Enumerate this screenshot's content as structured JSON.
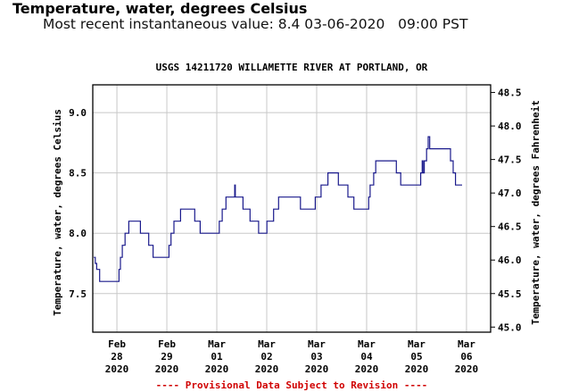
{
  "header": {
    "title": "Temperature, water, degrees Celsius",
    "subtitle": "Most recent instantaneous value: 8.4 03-06-2020   09:00 PST"
  },
  "footer": {
    "provisional_note": "---- Provisional Data Subject to Revision ----"
  },
  "colors": {
    "line": "#1a1a8c",
    "grid": "#c8c8c8",
    "provisional": "#d00000"
  },
  "chart_data": {
    "type": "line",
    "title": "USGS 14211720 WILLAMETTE RIVER AT PORTLAND, OR",
    "xlabel": "",
    "ylabel": "Temperature, water, degrees Celsius",
    "y2label": "Temperature, water, degrees Fahrenheit",
    "x_units": "hours since 2020-02-28 00:00 PST",
    "xlim": [
      0.4,
      191.6
    ],
    "ylim": [
      7.18,
      9.23
    ],
    "grid": true,
    "x_ticks": [
      {
        "x": 12,
        "label": [
          "Feb",
          "28",
          "2020"
        ]
      },
      {
        "x": 36,
        "label": [
          "Feb",
          "29",
          "2020"
        ]
      },
      {
        "x": 60,
        "label": [
          "Mar",
          "01",
          "2020"
        ]
      },
      {
        "x": 84,
        "label": [
          "Mar",
          "02",
          "2020"
        ]
      },
      {
        "x": 108,
        "label": [
          "Mar",
          "03",
          "2020"
        ]
      },
      {
        "x": 132,
        "label": [
          "Mar",
          "04",
          "2020"
        ]
      },
      {
        "x": 156,
        "label": [
          "Mar",
          "05",
          "2020"
        ]
      },
      {
        "x": 180,
        "label": [
          "Mar",
          "06",
          "2020"
        ]
      }
    ],
    "y_ticks": [
      {
        "y": 7.5,
        "label": "7.5"
      },
      {
        "y": 8.0,
        "label": "8.0"
      },
      {
        "y": 8.5,
        "label": "8.5"
      },
      {
        "y": 9.0,
        "label": "9.0"
      }
    ],
    "y2_ticks": [
      {
        "y": 45.0,
        "label": "45.0"
      },
      {
        "y": 45.5,
        "label": "45.5"
      },
      {
        "y": 46.0,
        "label": "46.0"
      },
      {
        "y": 46.5,
        "label": "46.5"
      },
      {
        "y": 47.0,
        "label": "47.0"
      },
      {
        "y": 47.5,
        "label": "47.5"
      },
      {
        "y": 48.0,
        "label": "48.0"
      },
      {
        "y": 48.5,
        "label": "48.5"
      }
    ],
    "series": [
      {
        "name": "Temperature, water",
        "step": true,
        "points": [
          [
            0.9,
            7.8
          ],
          [
            1.6,
            7.75
          ],
          [
            2.3,
            7.7
          ],
          [
            3.7,
            7.6
          ],
          [
            13.0,
            7.7
          ],
          [
            13.7,
            7.8
          ],
          [
            14.6,
            7.9
          ],
          [
            15.9,
            8.0
          ],
          [
            17.7,
            8.1
          ],
          [
            23.3,
            8.0
          ],
          [
            27.3,
            7.9
          ],
          [
            29.4,
            7.8
          ],
          [
            37.0,
            7.9
          ],
          [
            38.0,
            8.0
          ],
          [
            39.4,
            8.1
          ],
          [
            42.6,
            8.2
          ],
          [
            49.4,
            8.1
          ],
          [
            52.0,
            8.0
          ],
          [
            61.2,
            8.1
          ],
          [
            62.6,
            8.2
          ],
          [
            64.4,
            8.3
          ],
          [
            68.6,
            8.4
          ],
          [
            68.9,
            8.3
          ],
          [
            72.6,
            8.2
          ],
          [
            76.0,
            8.1
          ],
          [
            80.1,
            8.0
          ],
          [
            84.1,
            8.1
          ],
          [
            87.3,
            8.2
          ],
          [
            89.7,
            8.3
          ],
          [
            100.2,
            8.2
          ],
          [
            107.3,
            8.3
          ],
          [
            110.1,
            8.4
          ],
          [
            113.4,
            8.5
          ],
          [
            118.4,
            8.4
          ],
          [
            123.0,
            8.3
          ],
          [
            125.9,
            8.2
          ],
          [
            133.0,
            8.3
          ],
          [
            133.7,
            8.4
          ],
          [
            135.4,
            8.5
          ],
          [
            136.4,
            8.6
          ],
          [
            146.3,
            8.5
          ],
          [
            148.4,
            8.4
          ],
          [
            158.0,
            8.5
          ],
          [
            158.7,
            8.6
          ],
          [
            159.1,
            8.5
          ],
          [
            159.7,
            8.6
          ],
          [
            160.8,
            8.7
          ],
          [
            161.6,
            8.8
          ],
          [
            162.3,
            8.7
          ],
          [
            172.3,
            8.6
          ],
          [
            173.6,
            8.5
          ],
          [
            174.7,
            8.4
          ],
          [
            177.9,
            8.4
          ]
        ]
      }
    ]
  }
}
